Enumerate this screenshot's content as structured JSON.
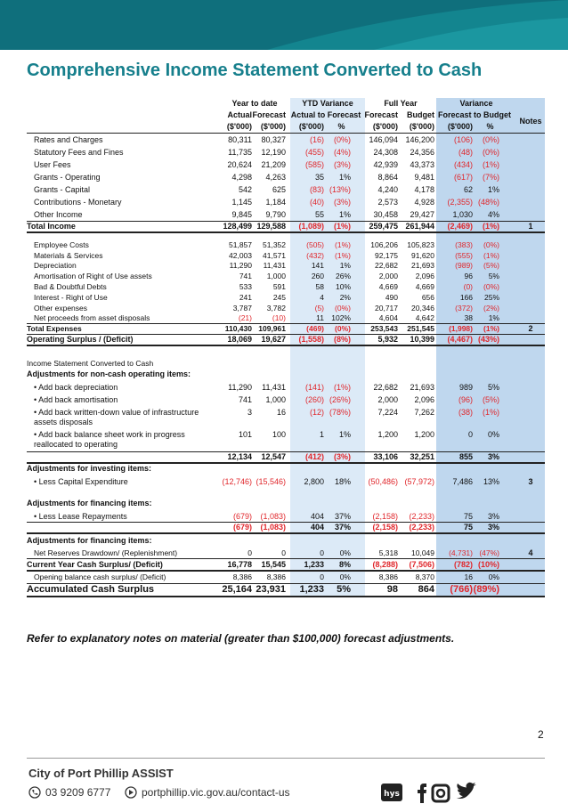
{
  "title": "Comprehensive Income Statement Converted to Cash",
  "table": {
    "group_headers": [
      "Year to date",
      "YTD Variance",
      "Full Year",
      "Variance"
    ],
    "column_headers": [
      "Actual",
      "Forecast",
      "Actual to Forecast",
      "Forecast",
      "Budget",
      "Forecast to Budget"
    ],
    "notes_header": "Notes",
    "units": [
      "($'000)",
      "($'000)",
      "($'000)",
      "%",
      "($'000)",
      "($'000)",
      "($'000)",
      "%"
    ],
    "rows": [
      {
        "label": "Rates and Charges",
        "cells": [
          "80,311",
          "80,327",
          "(16)",
          "(0%)",
          "146,094",
          "146,200",
          "(106)",
          "(0%)"
        ]
      },
      {
        "label": "Statutory Fees and Fines",
        "cells": [
          "11,735",
          "12,190",
          "(455)",
          "(4%)",
          "24,308",
          "24,356",
          "(48)",
          "(0%)"
        ]
      },
      {
        "label": "User Fees",
        "cells": [
          "20,624",
          "21,209",
          "(585)",
          "(3%)",
          "42,939",
          "43,373",
          "(434)",
          "(1%)"
        ]
      },
      {
        "label": "Grants - Operating",
        "cells": [
          "4,298",
          "4,263",
          "35",
          "1%",
          "8,864",
          "9,481",
          "(617)",
          "(7%)"
        ]
      },
      {
        "label": "Grants - Capital",
        "cells": [
          "542",
          "625",
          "(83)",
          "(13%)",
          "4,240",
          "4,178",
          "62",
          "1%"
        ]
      },
      {
        "label": "Contributions - Monetary",
        "cells": [
          "1,145",
          "1,184",
          "(40)",
          "(3%)",
          "2,573",
          "4,928",
          "(2,355)",
          "(48%)"
        ]
      },
      {
        "label": "Other Income",
        "cells": [
          "9,845",
          "9,790",
          "55",
          "1%",
          "30,458",
          "29,427",
          "1,030",
          "4%"
        ]
      },
      {
        "label": "Total Income",
        "cells": [
          "128,499",
          "129,588",
          "(1,089)",
          "(1%)",
          "259,475",
          "261,944",
          "(2,469)",
          "(1%)"
        ],
        "note": "1"
      },
      {
        "label": "Employee Costs",
        "cells": [
          "51,857",
          "51,352",
          "(505)",
          "(1%)",
          "106,206",
          "105,823",
          "(383)",
          "(0%)"
        ]
      },
      {
        "label": "Materials & Services",
        "cells": [
          "42,003",
          "41,571",
          "(432)",
          "(1%)",
          "92,175",
          "91,620",
          "(555)",
          "(1%)"
        ]
      },
      {
        "label": "Depreciation",
        "cells": [
          "11,290",
          "11,431",
          "141",
          "1%",
          "22,682",
          "21,693",
          "(989)",
          "(5%)"
        ]
      },
      {
        "label": "Amortisation of Right of Use assets",
        "cells": [
          "741",
          "1,000",
          "260",
          "26%",
          "2,000",
          "2,096",
          "96",
          "5%"
        ]
      },
      {
        "label": "Bad & Doubtful Debts",
        "cells": [
          "533",
          "591",
          "58",
          "10%",
          "4,669",
          "4,669",
          "(0)",
          "(0%)"
        ]
      },
      {
        "label": "Interest - Right of Use",
        "cells": [
          "241",
          "245",
          "4",
          "2%",
          "490",
          "656",
          "166",
          "25%"
        ]
      },
      {
        "label": "Other expenses",
        "cells": [
          "3,787",
          "3,782",
          "(5)",
          "(0%)",
          "20,717",
          "20,346",
          "(372)",
          "(2%)"
        ]
      },
      {
        "label": "Net proceeds from asset disposals",
        "cells": [
          "(21)",
          "(10)",
          "11",
          "102%",
          "4,604",
          "4,642",
          "38",
          "1%"
        ]
      },
      {
        "label": "Total Expenses",
        "cells": [
          "110,430",
          "109,961",
          "(469)",
          "(0%)",
          "253,543",
          "251,545",
          "(1,998)",
          "(1%)"
        ],
        "note": "2"
      },
      {
        "label": "Operating Surplus / (Deficit)",
        "cells": [
          "18,069",
          "19,627",
          "(1,558)",
          "(8%)",
          "5,932",
          "10,399",
          "(4,467)",
          "(43%)"
        ]
      },
      {
        "label": "Income Statement Converted to Cash"
      },
      {
        "label": "Adjustments for non-cash operating items:"
      },
      {
        "label": "• Add back depreciation",
        "cells": [
          "11,290",
          "11,431",
          "(141)",
          "(1%)",
          "22,682",
          "21,693",
          "989",
          "5%"
        ]
      },
      {
        "label": "• Add back amortisation",
        "cells": [
          "741",
          "1,000",
          "(260)",
          "(26%)",
          "2,000",
          "2,096",
          "(96)",
          "(5%)"
        ]
      },
      {
        "label": "• Add back written-down value of infrastructure assets disposals",
        "cells": [
          "3",
          "16",
          "(12)",
          "(78%)",
          "7,224",
          "7,262",
          "(38)",
          "(1%)"
        ]
      },
      {
        "label": "• Add back balance sheet work in progress reallocated to operating",
        "cells": [
          "101",
          "100",
          "1",
          "1%",
          "1,200",
          "1,200",
          "0",
          "0%"
        ]
      },
      {
        "cells": [
          "12,134",
          "12,547",
          "(412)",
          "(3%)",
          "33,106",
          "32,251",
          "855",
          "3%"
        ]
      },
      {
        "label": "Adjustments for investing items:"
      },
      {
        "label": "• Less Capital Expenditure",
        "cells": [
          "(12,746)",
          "(15,546)",
          "2,800",
          "18%",
          "(50,486)",
          "(57,972)",
          "7,486",
          "13%"
        ],
        "note": "3"
      },
      {
        "label": "Adjustments for financing items:"
      },
      {
        "label": "• Less Lease Repayments",
        "cells": [
          "(679)",
          "(1,083)",
          "404",
          "37%",
          "(2,158)",
          "(2,233)",
          "75",
          "3%"
        ]
      },
      {
        "cells": [
          "(679)",
          "(1,083)",
          "404",
          "37%",
          "(2,158)",
          "(2,233)",
          "75",
          "3%"
        ]
      },
      {
        "label": "Adjustments for financing items:"
      },
      {
        "label": "Net Reserves Drawdown/ (Replenishment)",
        "cells": [
          "0",
          "0",
          "0",
          "0%",
          "5,318",
          "10,049",
          "(4,731)",
          "(47%)"
        ],
        "note": "4"
      },
      {
        "label": "Current Year Cash Surplus/ (Deficit)",
        "cells": [
          "16,778",
          "15,545",
          "1,233",
          "8%",
          "(8,288)",
          "(7,506)",
          "(782)",
          "(10%)"
        ]
      },
      {
        "label": "Opening balance cash surplus/ (Deficit)",
        "cells": [
          "8,386",
          "8,386",
          "0",
          "0%",
          "8,386",
          "8,370",
          "16",
          "0%"
        ]
      },
      {
        "label": "Accumulated Cash Surplus",
        "cells": [
          "25,164",
          "23,931",
          "1,233",
          "5%",
          "98",
          "864",
          "(766)",
          "(89%)"
        ]
      }
    ]
  },
  "footnote": "Refer to explanatory notes on material (greater than $100,000) forecast adjustments.",
  "page_number": "2",
  "footer": {
    "organization": "City of Port Phillip ASSIST",
    "phone": "03 9209 6777",
    "website": "portphillip.vic.gov.au/contact-us"
  }
}
